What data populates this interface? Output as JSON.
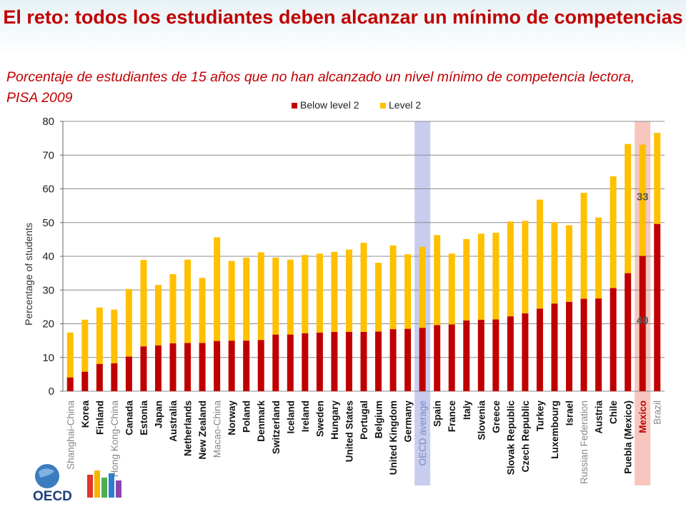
{
  "header": {
    "title": "El reto: todos los estudiantes deben alcanzar un mínimo de competencias",
    "subtitle": "Porcentaje de estudiantes de 15 años que no han alcanzado un nivel mínimo de competencia lectora, PISA 2009"
  },
  "logo": {
    "text": "OECD"
  },
  "colors": {
    "below_level_2": "#c00000",
    "level_2": "#ffc000",
    "oecd_highlight": "#c8cdee",
    "mexico_highlight": "#f8c6be",
    "gridline": "#8c8c8c",
    "title": "#c00000"
  },
  "chart_data": {
    "type": "bar",
    "stacked": true,
    "ylabel": "Percentage of students",
    "ylim": [
      0,
      80
    ],
    "yticks": [
      0,
      10,
      20,
      30,
      40,
      50,
      60,
      70,
      80
    ],
    "grid": true,
    "legend_position": "top",
    "categories": [
      "Shanghai-China",
      "Korea",
      "Finland",
      "Hong Kong-China",
      "Canada",
      "Estonia",
      "Japan",
      "Australia",
      "Netherlands",
      "New Zealand",
      "Macao-China",
      "Norway",
      "Poland",
      "Denmark",
      "Switzerland",
      "Iceland",
      "Ireland",
      "Sweden",
      "Hungary",
      "United States",
      "Portugal",
      "Belgium",
      "United Kingdom",
      "Germany",
      "OECD average",
      "Spain",
      "France",
      "Italy",
      "Slovenia",
      "Greece",
      "Slovak Republic",
      "Czech Republic",
      "Turkey",
      "Luxembourg",
      "Israel",
      "Russian Federation",
      "Austria",
      "Chile",
      "Puebla (Mexico)",
      "Mexico",
      "Brazil"
    ],
    "label_style": [
      "light",
      "bold",
      "bold",
      "light",
      "bold",
      "bold",
      "bold",
      "bold",
      "bold",
      "bold",
      "light",
      "bold",
      "bold",
      "bold",
      "bold",
      "bold",
      "bold",
      "bold",
      "bold",
      "bold",
      "bold",
      "bold",
      "bold",
      "bold",
      "oecd",
      "bold",
      "bold",
      "bold",
      "bold",
      "bold",
      "bold",
      "bold",
      "bold",
      "bold",
      "bold",
      "light",
      "bold",
      "bold",
      "bold",
      "mexico",
      "light"
    ],
    "highlights": [
      {
        "category": "OECD average",
        "color": "#c8cdee"
      },
      {
        "category": "Mexico",
        "color": "#f8c6be"
      }
    ],
    "series": [
      {
        "name": "Below level 2",
        "color": "#c00000",
        "values": [
          4.1,
          5.8,
          8.1,
          8.3,
          10.3,
          13.3,
          13.6,
          14.2,
          14.3,
          14.3,
          14.9,
          15.0,
          15.0,
          15.2,
          16.8,
          16.8,
          17.2,
          17.4,
          17.6,
          17.6,
          17.6,
          17.7,
          18.4,
          18.5,
          18.8,
          19.6,
          19.8,
          21.0,
          21.2,
          21.3,
          22.2,
          23.1,
          24.5,
          26.0,
          26.5,
          27.4,
          27.5,
          30.6,
          35.0,
          40.1,
          49.6
        ]
      },
      {
        "name": "Level 2",
        "color": "#ffc000",
        "values": [
          13.3,
          15.4,
          16.7,
          15.9,
          20.0,
          25.6,
          17.9,
          20.5,
          24.7,
          19.3,
          30.7,
          23.6,
          24.6,
          26.0,
          22.8,
          22.2,
          23.2,
          23.4,
          23.7,
          24.4,
          26.4,
          20.4,
          24.8,
          22.1,
          24.0,
          26.7,
          21.0,
          24.1,
          25.5,
          25.7,
          28.1,
          27.4,
          32.3,
          24.1,
          22.7,
          31.4,
          24.0,
          33.1,
          38.3,
          33.0,
          27.0
        ]
      }
    ],
    "annotations": [
      {
        "category": "Mexico",
        "series": "Below level 2",
        "text": "40"
      },
      {
        "category": "Mexico",
        "series": "Level 2",
        "text": "33"
      }
    ]
  }
}
